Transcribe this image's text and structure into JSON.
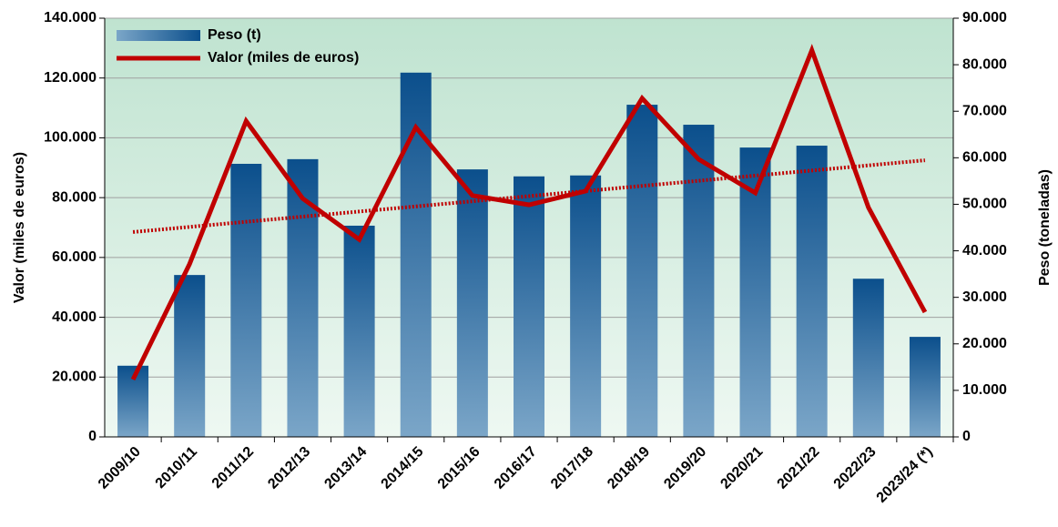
{
  "chart_data": {
    "type": "bar_line",
    "ylabel": "Valor (miles de euros)",
    "y2label": "Peso (toneladas)",
    "categories": [
      "2009/10",
      "2010/11",
      "2011/12",
      "2012/13",
      "2013/14",
      "2014/15",
      "2015/16",
      "2016/17",
      "2017/18",
      "2018/19",
      "2019/20",
      "2020/21",
      "2021/22",
      "2022/23",
      "2023/24 (*)"
    ],
    "series": [
      {
        "name": "Peso (t)",
        "type": "bar",
        "axis": "y2",
        "color": "#0b4f8c",
        "values": [
          15300,
          34800,
          58700,
          59700,
          45400,
          78300,
          57500,
          56000,
          56200,
          71400,
          67100,
          62200,
          62600,
          34000,
          21500
        ]
      },
      {
        "name": "Valor (miles de euros)",
        "type": "line",
        "axis": "y",
        "color": "#c00000",
        "values": [
          19200,
          57800,
          105600,
          79700,
          66000,
          103500,
          80700,
          77600,
          82200,
          113200,
          92800,
          81600,
          129300,
          76700,
          41700
        ]
      }
    ],
    "trendline": {
      "color": "#c00000",
      "values": [
        68500,
        92500
      ]
    },
    "ylim": [
      0,
      140000
    ],
    "yticks": [
      {
        "value": 0,
        "label": "0"
      },
      {
        "value": 20000,
        "label": "20.000"
      },
      {
        "value": 40000,
        "label": "40.000"
      },
      {
        "value": 60000,
        "label": "60.000"
      },
      {
        "value": 80000,
        "label": "80.000"
      },
      {
        "value": 100000,
        "label": "100.000"
      },
      {
        "value": 120000,
        "label": "120.000"
      },
      {
        "value": 140000,
        "label": "140.000"
      }
    ],
    "y2lim": [
      0,
      90000
    ],
    "y2ticks": [
      {
        "value": 0,
        "label": "0"
      },
      {
        "value": 10000,
        "label": "10.000"
      },
      {
        "value": 20000,
        "label": "20.000"
      },
      {
        "value": 30000,
        "label": "30.000"
      },
      {
        "value": 40000,
        "label": "40.000"
      },
      {
        "value": 50000,
        "label": "50.000"
      },
      {
        "value": 60000,
        "label": "60.000"
      },
      {
        "value": 70000,
        "label": "70.000"
      },
      {
        "value": 80000,
        "label": "80.000"
      },
      {
        "value": 90000,
        "label": "90.000"
      }
    ],
    "grid": true,
    "legend": "top-left"
  }
}
